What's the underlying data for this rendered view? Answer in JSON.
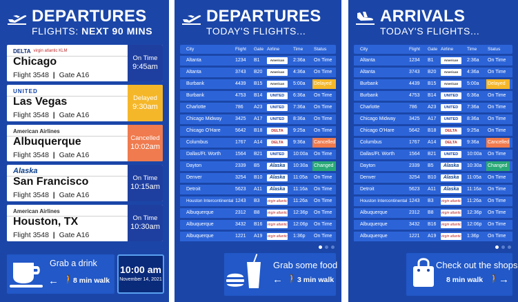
{
  "p1": {
    "title": "DEPARTURES",
    "sub_pre": "FLIGHTS: ",
    "sub_bold": "NEXT 90 MINS",
    "cards": [
      {
        "airline": "DELTA",
        "partners": "virgin atlantic  KLM",
        "city": "Chicago",
        "flight": "Flight 3548",
        "gate": "Gate A16",
        "status": "On Time",
        "time": "9:45am",
        "color": "#1e3fa0"
      },
      {
        "airline": "UNITED",
        "partners": "",
        "city": "Las Vegas",
        "flight": "Flight 3548",
        "gate": "Gate A16",
        "status": "Delayed",
        "time": "9:30am",
        "color": "#f5b72a"
      },
      {
        "airline": "American Airlines",
        "partners": "",
        "city": "Albuquerque",
        "flight": "Flight 3548",
        "gate": "Gate A16",
        "status": "Cancelled",
        "time": "10:02am",
        "color": "#ef7b4e"
      },
      {
        "airline": "Alaska",
        "partners": "",
        "city": "San Francisco",
        "flight": "Flight 3548",
        "gate": "Gate A16",
        "status": "On Time",
        "time": "10:15am",
        "color": "#1e3fa0"
      },
      {
        "airline": "American Airlines",
        "partners": "",
        "city": "Houston, TX",
        "flight": "Flight 3548",
        "gate": "Gate A16",
        "status": "On Time",
        "time": "10:30am",
        "color": "#1e3fa0"
      }
    ],
    "promo_label": "Grab a drink",
    "promo_walk": "8 min walk",
    "clock_time": "10:00 am",
    "clock_date": "November 14, 2021"
  },
  "table_headers": [
    "City",
    "Flight",
    "Gate",
    "Airline",
    "Time",
    "Status"
  ],
  "p2": {
    "title": "DEPARTURES",
    "sub": "TODAY'S FLIGHTS...",
    "promo_label": "Grab some food",
    "promo_walk": "3 min walk"
  },
  "p3": {
    "title": "ARRIVALS",
    "sub": "TODAY'S FLIGHTS...",
    "promo_label": "Check out the shops",
    "promo_walk": "8 min walk"
  },
  "rows": [
    {
      "city": "Altanta",
      "flight": "1234",
      "gate": "B1",
      "airline": "American",
      "time": "2:36a",
      "status": "On Time"
    },
    {
      "city": "Altanta",
      "flight": "3743",
      "gate": "B20",
      "airline": "American",
      "time": "4:36a",
      "status": "On Time"
    },
    {
      "city": "Burbank",
      "flight": "4439",
      "gate": "B15",
      "airline": "American",
      "time": "5:00a",
      "status": "Delayed"
    },
    {
      "city": "Burbank",
      "flight": "4753",
      "gate": "B14",
      "airline": "UNITED",
      "time": "6:36a",
      "status": "On Time"
    },
    {
      "city": "Charlotte",
      "flight": "786",
      "gate": "A23",
      "airline": "UNITED",
      "time": "7:36a",
      "status": "On Time"
    },
    {
      "city": "Chicago Midway",
      "flight": "3425",
      "gate": "A17",
      "airline": "UNITED",
      "time": "8:36a",
      "status": "On Time"
    },
    {
      "city": "Chicago O'Hare",
      "flight": "5642",
      "gate": "B18",
      "airline": "DELTA",
      "time": "9:25a",
      "status": "On Time"
    },
    {
      "city": "Columbus",
      "flight": "1767",
      "gate": "A14",
      "airline": "DELTA",
      "time": "9:36a",
      "status": "Cancelled"
    },
    {
      "city": "Dallas/Ft. Worth",
      "flight": "1564",
      "gate": "B21",
      "airline": "UNITED",
      "time": "10:00a",
      "status": "On Time"
    },
    {
      "city": "Dayton",
      "flight": "2339",
      "gate": "B5",
      "airline": "Alaska",
      "time": "10:30a",
      "status": "Changed"
    },
    {
      "city": "Denver",
      "flight": "3254",
      "gate": "B10",
      "airline": "Alaska",
      "time": "11:05a",
      "status": "On Time"
    },
    {
      "city": "Detroit",
      "flight": "5623",
      "gate": "A11",
      "airline": "Alaska",
      "time": "11:16a",
      "status": "On Time"
    },
    {
      "city": "Houston Intercontinental",
      "flight": "1243",
      "gate": "B3",
      "airline": "virgin atlantic",
      "time": "11:26a",
      "status": "On Time"
    },
    {
      "city": "Albuquerque",
      "flight": "2312",
      "gate": "B8",
      "airline": "virgin atlantic",
      "time": "12:36p",
      "status": "On Time"
    },
    {
      "city": "Albuquerque",
      "flight": "3432",
      "gate": "B16",
      "airline": "virgin atlantic",
      "time": "12:06p",
      "status": "On Time"
    },
    {
      "city": "Albuquerque",
      "flight": "1221",
      "gate": "A19",
      "airline": "virgin atlantic",
      "time": "1:36p",
      "status": "On Time"
    }
  ],
  "colors": {
    "panel": "#1b46a8",
    "row": "#2c64d8",
    "delayed": "#f5b72a",
    "cancelled": "#ef7b4e",
    "changed": "#29a877"
  }
}
